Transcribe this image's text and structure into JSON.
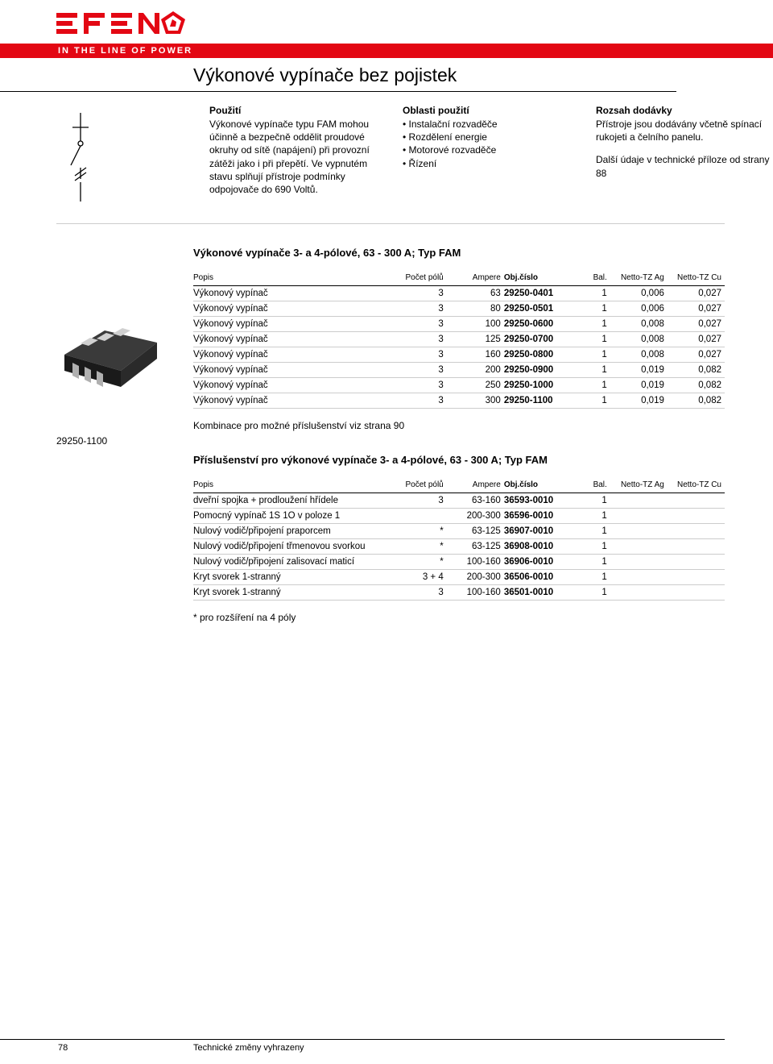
{
  "brand": {
    "name": "EFEN",
    "tagline": "IN THE LINE OF POWER",
    "logo_color": "#e30713",
    "bar_color": "#e30713"
  },
  "page_title": "Výkonové vypínače bez pojistek",
  "intro_columns": {
    "use": {
      "heading": "Použití",
      "body": "Výkonové vypínače typu FAM mohou účinně a bezpečně oddělit proudové okruhy od sítě (napájení) při provozní zátěži jako i při přepětí. Ve vypnutém stavu splňují přístroje podmínky odpojovače do 690 Voltů."
    },
    "area": {
      "heading": "Oblasti použití",
      "items": [
        "Instalační rozvaděče",
        "Rozdělení energie",
        "Motorové rozvaděče",
        "Řízení"
      ]
    },
    "scope": {
      "heading": "Rozsah dodávky",
      "body1": "Přístroje jsou dodávány včetně spínací rukojeti a čelního panelu.",
      "body2": "Další údaje v technické příloze od strany 88"
    }
  },
  "section1": {
    "heading": "Výkonové vypínače 3- a 4-pólové, 63 - 300 A; Typ FAM",
    "columns": [
      "Popis",
      "Počet pólů",
      "Ampere",
      "Obj.číslo",
      "Bal.",
      "Netto-TZ Ag",
      "Netto-TZ Cu"
    ],
    "rows": [
      [
        "Výkonový vypínač",
        "3",
        "63",
        "29250-0401",
        "1",
        "0,006",
        "0,027"
      ],
      [
        "Výkonový vypínač",
        "3",
        "80",
        "29250-0501",
        "1",
        "0,006",
        "0,027"
      ],
      [
        "Výkonový vypínač",
        "3",
        "100",
        "29250-0600",
        "1",
        "0,008",
        "0,027"
      ],
      [
        "Výkonový vypínač",
        "3",
        "125",
        "29250-0700",
        "1",
        "0,008",
        "0,027"
      ],
      [
        "Výkonový vypínač",
        "3",
        "160",
        "29250-0800",
        "1",
        "0,008",
        "0,027"
      ],
      [
        "Výkonový vypínač",
        "3",
        "200",
        "29250-0900",
        "1",
        "0,019",
        "0,082"
      ],
      [
        "Výkonový vypínač",
        "3",
        "250",
        "29250-1000",
        "1",
        "0,019",
        "0,082"
      ],
      [
        "Výkonový vypínač",
        "3",
        "300",
        "29250-1100",
        "1",
        "0,019",
        "0,082"
      ]
    ],
    "combo_note": "Kombinace pro možné příslušenství viz strana 90"
  },
  "section2": {
    "heading": "Příslušenství pro výkonové vypínače 3- a 4-pólové, 63 - 300 A; Typ FAM",
    "columns": [
      "Popis",
      "Počet pólů",
      "Ampere",
      "Obj.číslo",
      "Bal.",
      "Netto-TZ Ag",
      "Netto-TZ Cu"
    ],
    "rows": [
      [
        "dveřní spojka + prodloužení hřídele",
        "3",
        "63-160",
        "36593-0010",
        "1",
        "",
        ""
      ],
      [
        "Pomocný vypínač 1S 1O v poloze 1",
        "",
        "200-300",
        "36596-0010",
        "1",
        "",
        ""
      ],
      [
        "Nulový vodič/připojení praporcem",
        "*",
        "63-125",
        "36907-0010",
        "1",
        "",
        ""
      ],
      [
        "Nulový vodič/připojení třmenovou svorkou",
        "*",
        "63-125",
        "36908-0010",
        "1",
        "",
        ""
      ],
      [
        "Nulový vodič/připojení zalisovací maticí",
        "*",
        "100-160",
        "36906-0010",
        "1",
        "",
        ""
      ],
      [
        "Kryt svorek 1-stranný",
        "3 + 4",
        "200-300",
        "36506-0010",
        "1",
        "",
        ""
      ],
      [
        "Kryt svorek 1-stranný",
        "3",
        "100-160",
        "36501-0010",
        "1",
        "",
        ""
      ]
    ],
    "footnote": "* pro rozšíření na 4 póly"
  },
  "product_image_label": "29250-1100",
  "footer": {
    "page_number": "78",
    "note": "Technické změny vyhrazeny"
  }
}
